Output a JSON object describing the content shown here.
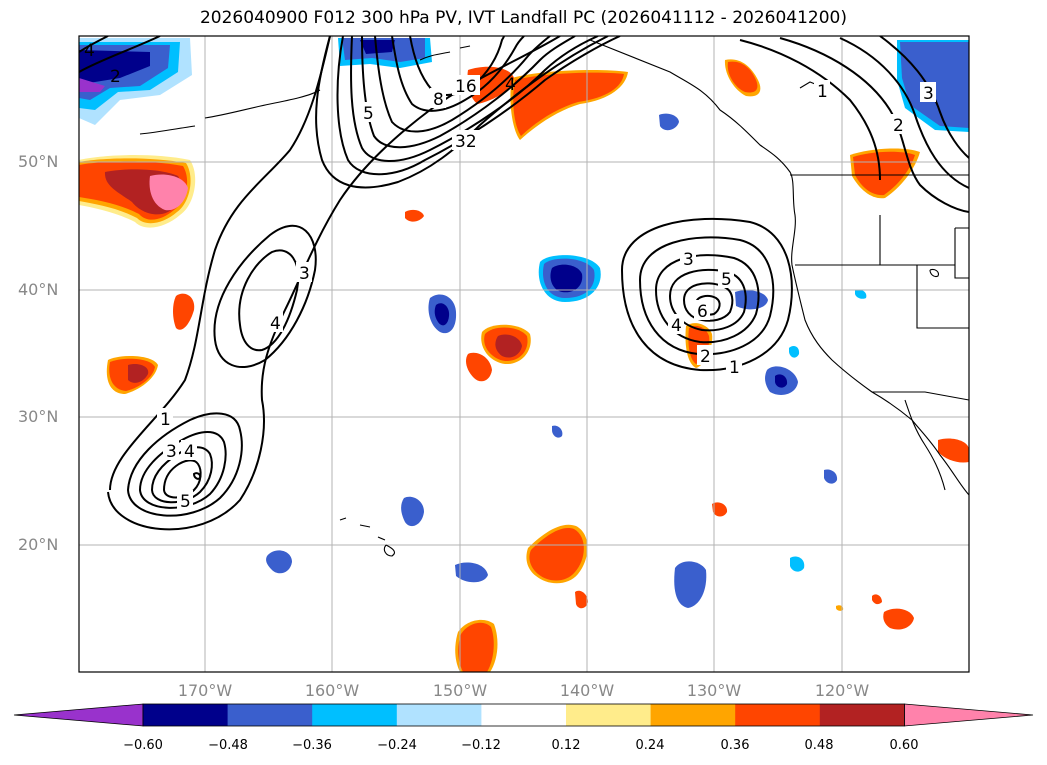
{
  "title": "2026040900 F012 300 hPa PV, IVT Landfall PC (2026041112 - 2026041200)",
  "lat_labels": [
    "50°N",
    "40°N",
    "30°N",
    "20°N"
  ],
  "lon_labels": [
    "170°W",
    "160°W",
    "150°W",
    "140°W",
    "130°W",
    "120°W"
  ],
  "colorbar": {
    "ticks": [
      "−0.60",
      "−0.48",
      "−0.36",
      "−0.24",
      "−0.12",
      "0.12",
      "0.24",
      "0.36",
      "0.48",
      "0.60"
    ],
    "colors": [
      "#9932cc",
      "#00008b",
      "#3a5fcd",
      "#00bfff",
      "#b0e2ff",
      "#ffffff",
      "#ffec8b",
      "#ffa500",
      "#ff4500",
      "#b22222",
      "#ff82ab"
    ]
  },
  "contour_labels": {
    "west_1": "1",
    "west_3": "3",
    "west_4": "4",
    "west_5": "5",
    "mid_3": "3",
    "mid_4": "4",
    "north_5": "5",
    "north_8": "8",
    "north_16": "16",
    "north_32": "32",
    "north_4": "4",
    "east_3": "3",
    "east_5": "5",
    "east_6": "6",
    "east_4": "4",
    "east_2": "2",
    "east_1": "1",
    "ne_1": "1",
    "ne_2": "2",
    "ne_3": "3",
    "nw_4": "4",
    "nw_2": "2"
  }
}
